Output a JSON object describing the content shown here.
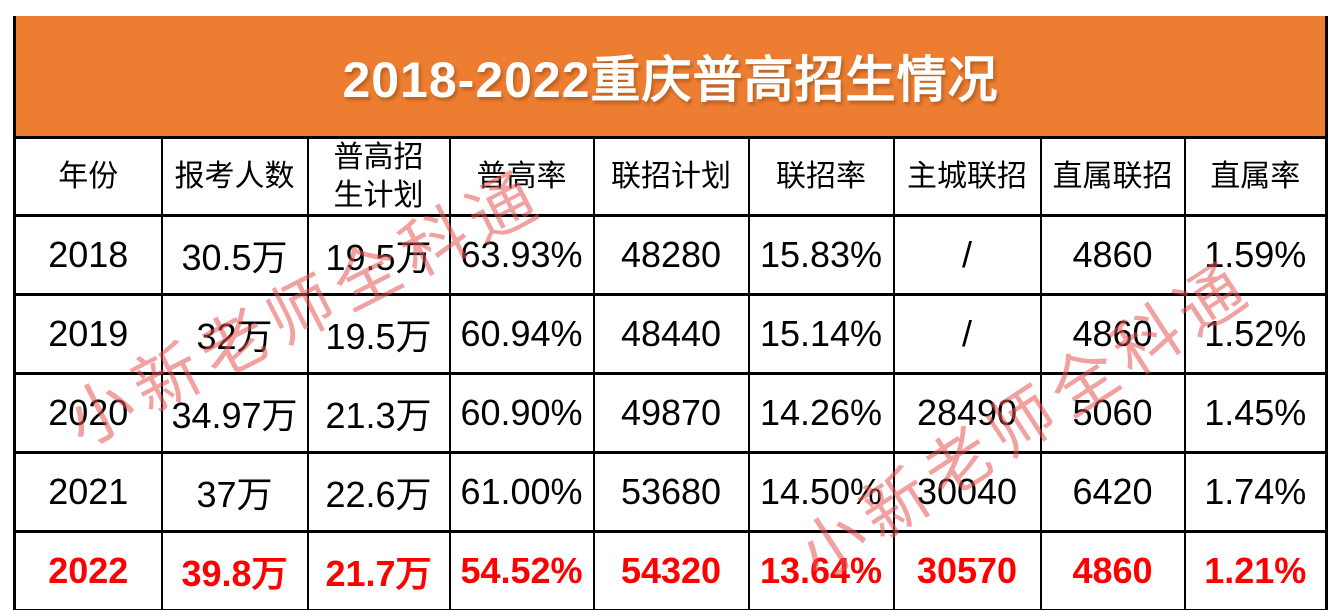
{
  "title": "2018-2022重庆普高招生情况",
  "watermarks": [
    "小新老师全科通",
    "小新老师全科通"
  ],
  "colors": {
    "banner_orange": "#ED7D31",
    "highlight_red": "#FF0000",
    "watermark_pink": "#E75454",
    "grid_black": "#000000"
  },
  "chart_data": {
    "type": "table",
    "title": "2018-2022重庆普高招生情况",
    "columns": [
      "年份",
      "报考人数",
      "普高招生计划",
      "普高率",
      "联招计划",
      "联招率",
      "主城联招",
      "直属联招",
      "直属率"
    ],
    "wrap_columns": [
      2
    ],
    "rows": [
      [
        "2018",
        "30.5万",
        "19.5万",
        "63.93%",
        "48280",
        "15.83%",
        "/",
        "4860",
        "1.59%"
      ],
      [
        "2019",
        "32万",
        "19.5万",
        "60.94%",
        "48440",
        "15.14%",
        "/",
        "4860",
        "1.52%"
      ],
      [
        "2020",
        "34.97万",
        "21.3万",
        "60.90%",
        "49870",
        "14.26%",
        "28490",
        "5060",
        "1.45%"
      ],
      [
        "2021",
        "37万",
        "22.6万",
        "61.00%",
        "53680",
        "14.50%",
        "30040",
        "6420",
        "1.74%"
      ],
      [
        "2022",
        "39.8万",
        "21.7万",
        "54.52%",
        "54320",
        "13.64%",
        "30570",
        "4860",
        "1.21%"
      ]
    ],
    "highlighted_row_index": 4,
    "highlighted_row_label": "2022"
  }
}
